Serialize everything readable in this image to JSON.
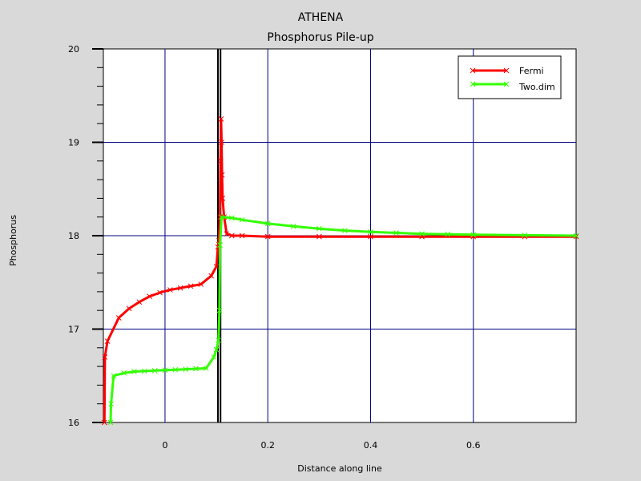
{
  "chart_data": {
    "type": "line",
    "title": "ATHENA",
    "subtitle": "Phosphorus Pile-up",
    "xlabel": "Distance along line",
    "ylabel": "Phosphorus",
    "xlim": [
      -0.12,
      0.8
    ],
    "ylim": [
      16,
      20
    ],
    "xticks": [
      0,
      0.2,
      0.4,
      0.6
    ],
    "xtick_labels": [
      "0",
      "0.2",
      "0.4",
      "0.6"
    ],
    "yticks": [
      16,
      17,
      18,
      19,
      20
    ],
    "ytick_labels": [
      "16",
      "17",
      "18",
      "19",
      "20"
    ],
    "grid": true,
    "grid_color": "#000080",
    "vertical_markers": [
      0.103,
      0.108
    ],
    "legend_position": "top-right",
    "series": [
      {
        "name": "Fermi",
        "color": "#ff0000",
        "x": [
          -0.118,
          -0.117,
          -0.112,
          -0.09,
          -0.07,
          -0.05,
          -0.03,
          -0.01,
          0.01,
          0.03,
          0.05,
          0.07,
          0.09,
          0.1,
          0.103,
          0.105,
          0.107,
          0.108,
          0.109,
          0.11,
          0.111,
          0.112,
          0.115,
          0.12,
          0.13,
          0.15,
          0.2,
          0.3,
          0.4,
          0.5,
          0.6,
          0.7,
          0.8
        ],
        "y": [
          16.0,
          16.7,
          16.87,
          17.12,
          17.22,
          17.29,
          17.35,
          17.39,
          17.42,
          17.44,
          17.46,
          17.48,
          17.57,
          17.67,
          17.88,
          17.95,
          18.2,
          18.8,
          19.25,
          19.0,
          18.65,
          18.4,
          18.2,
          18.02,
          18.0,
          18.0,
          17.99,
          17.99,
          17.99,
          17.99,
          17.99,
          17.99,
          17.99
        ]
      },
      {
        "name": "Two.dim",
        "color": "#33ff00",
        "x": [
          -0.106,
          -0.105,
          -0.1,
          -0.08,
          -0.06,
          -0.04,
          -0.02,
          0,
          0.02,
          0.04,
          0.06,
          0.08,
          0.095,
          0.1,
          0.104,
          0.106,
          0.107,
          0.11,
          0.13,
          0.15,
          0.2,
          0.25,
          0.3,
          0.35,
          0.4,
          0.45,
          0.5,
          0.55,
          0.6,
          0.7,
          0.8
        ],
        "y": [
          16.0,
          16.2,
          16.5,
          16.53,
          16.545,
          16.55,
          16.555,
          16.56,
          16.565,
          16.57,
          16.575,
          16.58,
          16.7,
          16.78,
          16.88,
          17.2,
          17.9,
          18.2,
          18.19,
          18.17,
          18.13,
          18.1,
          18.075,
          18.055,
          18.04,
          18.03,
          18.02,
          18.015,
          18.01,
          18.005,
          18.0
        ]
      }
    ]
  }
}
